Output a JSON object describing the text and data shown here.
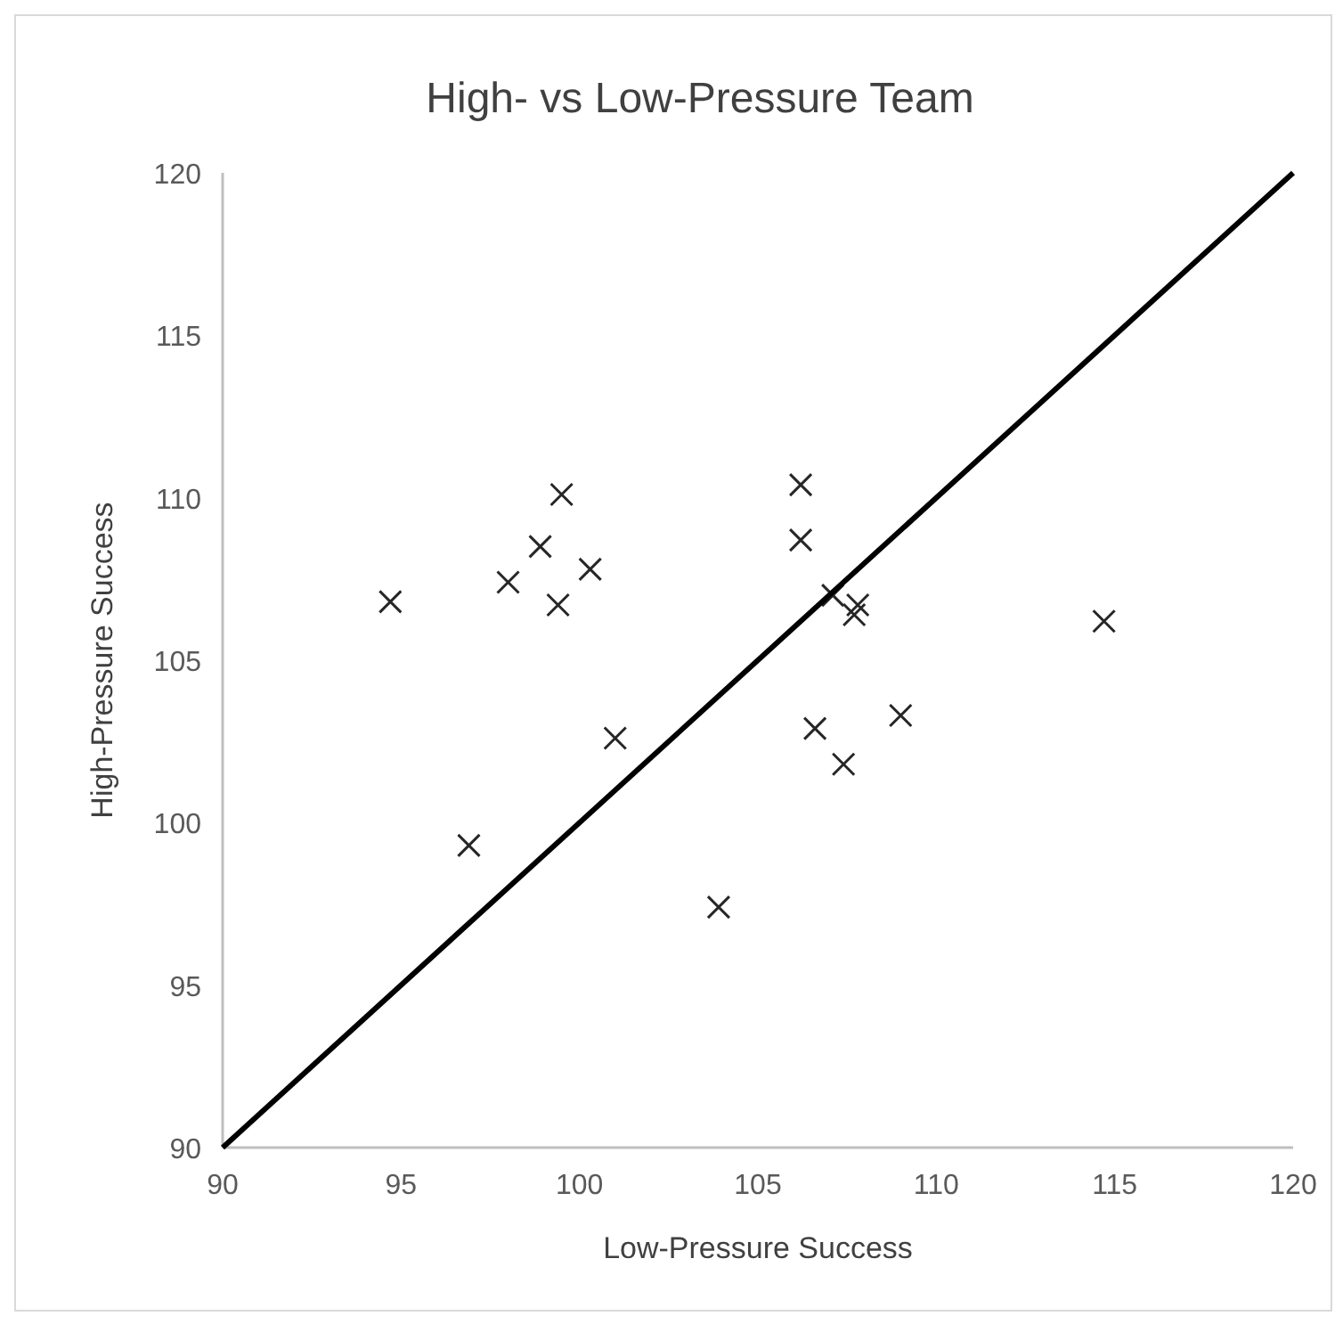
{
  "chart_data": {
    "type": "scatter",
    "title": "High- vs Low-Pressure Team",
    "xlabel": "Low-Pressure Success",
    "ylabel": "High-Pressure Success",
    "xlim": [
      90,
      120
    ],
    "xticks": [
      90,
      95,
      100,
      105,
      110,
      115,
      120
    ],
    "ylim": [
      90,
      120
    ],
    "yticks": [
      90,
      95,
      100,
      105,
      110,
      115,
      120
    ],
    "grid": false,
    "marker": "cross",
    "series": [
      {
        "color": "#262626",
        "x": [
          94.7,
          96.9,
          98.0,
          98.9,
          99.5,
          99.4,
          100.3,
          101.0,
          103.9,
          106.2,
          106.2,
          107.1,
          107.8,
          107.7,
          114.7,
          106.6,
          109.0,
          107.4
        ],
        "values": [
          106.8,
          99.3,
          107.4,
          108.5,
          110.1,
          106.7,
          107.8,
          102.6,
          97.4,
          110.4,
          108.7,
          107.0,
          106.7,
          106.4,
          106.2,
          102.9,
          103.3,
          101.8
        ]
      },
      {
        "type": "line",
        "color": "#000000",
        "x": [
          90,
          120
        ],
        "values": [
          90,
          120
        ],
        "marker": "none",
        "line_style": "solid"
      }
    ]
  }
}
